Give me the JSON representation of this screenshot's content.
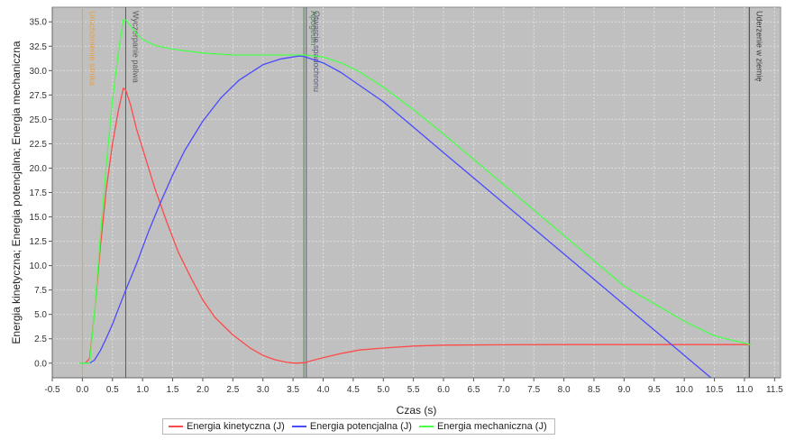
{
  "chart_data": {
    "type": "line",
    "title": "",
    "xlabel": "Czas (s)",
    "ylabel": "Energia kinetyczna; Energia potencjalna; Energia mechaniczna",
    "xlim": [
      -0.5,
      11.6
    ],
    "ylim": [
      -1.5,
      36.5
    ],
    "x_ticks": [
      -0.5,
      0.0,
      0.5,
      1.0,
      1.5,
      2.0,
      2.5,
      3.0,
      3.5,
      4.0,
      4.5,
      5.0,
      5.5,
      6.0,
      6.5,
      7.0,
      7.5,
      8.0,
      8.5,
      9.0,
      9.5,
      10.0,
      10.5,
      11.0,
      11.5
    ],
    "x_tick_labels": [
      "-0.5",
      "0.0",
      "0.5",
      "1.0",
      "1.5",
      "2.0",
      "2.5",
      "3.0",
      "3.5",
      "4.0",
      "4.5",
      "5.0",
      "5.5",
      "6.0",
      "6.5",
      "7.0",
      "7.5",
      "8.0",
      "8.5",
      "9.0",
      "9.5",
      "10.0",
      "10.5",
      "11.0",
      "11.5"
    ],
    "y_ticks": [
      0,
      2.5,
      5,
      7.5,
      10,
      12.5,
      15,
      17.5,
      20,
      22.5,
      25,
      27.5,
      30,
      32.5,
      35
    ],
    "y_tick_labels": [
      "0.0",
      "2.5",
      "5.0",
      "7.5",
      "10.0",
      "12.5",
      "15.0",
      "17.5",
      "20.0",
      "22.5",
      "25.0",
      "27.5",
      "30.0",
      "32.5",
      "35.0"
    ],
    "grid": true,
    "legend_position": "bottom",
    "background_color": "#c0c0c0",
    "events": [
      {
        "x": 0.0,
        "label": "Uruchomienie silnika",
        "color": "#e8a040"
      },
      {
        "x": 0.72,
        "label": "Wyczerpanie paliwa",
        "color": "#5a5a5a"
      },
      {
        "x": 3.68,
        "label": "Apogeum",
        "color": "#4a8a4a"
      },
      {
        "x": 3.72,
        "label": "Otwarcie spadochronu",
        "color": "#5a5a78"
      },
      {
        "x": 11.08,
        "label": "Uderzenie w ziemię",
        "color": "#3a3a3a"
      }
    ],
    "series": [
      {
        "name": "Energia kinetyczna (J)",
        "color": "#ff4a4a",
        "x": [
          -0.05,
          0.05,
          0.12,
          0.2,
          0.3,
          0.4,
          0.5,
          0.6,
          0.68,
          0.72,
          0.8,
          0.9,
          1.0,
          1.2,
          1.4,
          1.6,
          1.8,
          2.0,
          2.2,
          2.5,
          2.8,
          3.0,
          3.2,
          3.4,
          3.55,
          3.7,
          3.8,
          4.0,
          4.3,
          4.6,
          5.0,
          5.5,
          6.0,
          7.0,
          8.0,
          9.0,
          10.0,
          10.8,
          11.1
        ],
        "y": [
          0,
          0,
          0.5,
          5,
          12,
          18,
          22.5,
          26,
          28.2,
          28,
          26.5,
          24,
          22,
          18,
          14.5,
          11.3,
          8.8,
          6.5,
          4.7,
          2.9,
          1.5,
          0.8,
          0.35,
          0.08,
          0.0,
          0.05,
          0.25,
          0.55,
          1.0,
          1.35,
          1.55,
          1.75,
          1.85,
          1.88,
          1.9,
          1.9,
          1.9,
          1.9,
          1.9
        ]
      },
      {
        "name": "Energia potencjalna (J)",
        "color": "#4a4aff",
        "x": [
          -0.05,
          0.12,
          0.2,
          0.3,
          0.4,
          0.5,
          0.6,
          0.72,
          0.9,
          1.1,
          1.3,
          1.5,
          1.7,
          2.0,
          2.3,
          2.6,
          3.0,
          3.3,
          3.5,
          3.6,
          3.68,
          3.8,
          4.0,
          4.3,
          4.6,
          5.0,
          5.5,
          6.0,
          7.0,
          8.0,
          9.0,
          10.0,
          10.5,
          11.1
        ],
        "y": [
          0,
          0,
          0.3,
          1.3,
          2.6,
          4.0,
          5.6,
          7.5,
          10.2,
          13.5,
          16.5,
          19.3,
          21.8,
          24.8,
          27.2,
          29.0,
          30.6,
          31.2,
          31.4,
          31.5,
          31.45,
          31.2,
          30.8,
          29.8,
          28.5,
          26.8,
          24.2,
          21.6,
          16.4,
          11.2,
          6.0,
          0.8,
          -1.8,
          -4.3
        ]
      },
      {
        "name": "Energia mechaniczna (J)",
        "color": "#4aff4a",
        "x": [
          -0.05,
          0.12,
          0.2,
          0.3,
          0.4,
          0.5,
          0.6,
          0.68,
          0.72,
          0.8,
          0.9,
          1.0,
          1.2,
          1.5,
          2.0,
          2.5,
          3.0,
          3.5,
          3.68,
          4.0,
          4.3,
          4.6,
          5.0,
          5.5,
          6.0,
          7.0,
          8.0,
          9.0,
          10.0,
          10.5,
          11.1
        ],
        "y": [
          0,
          0,
          5,
          13,
          20.5,
          27,
          32,
          35.2,
          35.2,
          34.6,
          33.8,
          33.2,
          32.6,
          32.2,
          31.8,
          31.6,
          31.6,
          31.6,
          31.6,
          31.4,
          30.8,
          29.9,
          28.3,
          26.0,
          23.5,
          18.3,
          13.1,
          7.9,
          4.3,
          2.8,
          1.9
        ]
      }
    ]
  }
}
